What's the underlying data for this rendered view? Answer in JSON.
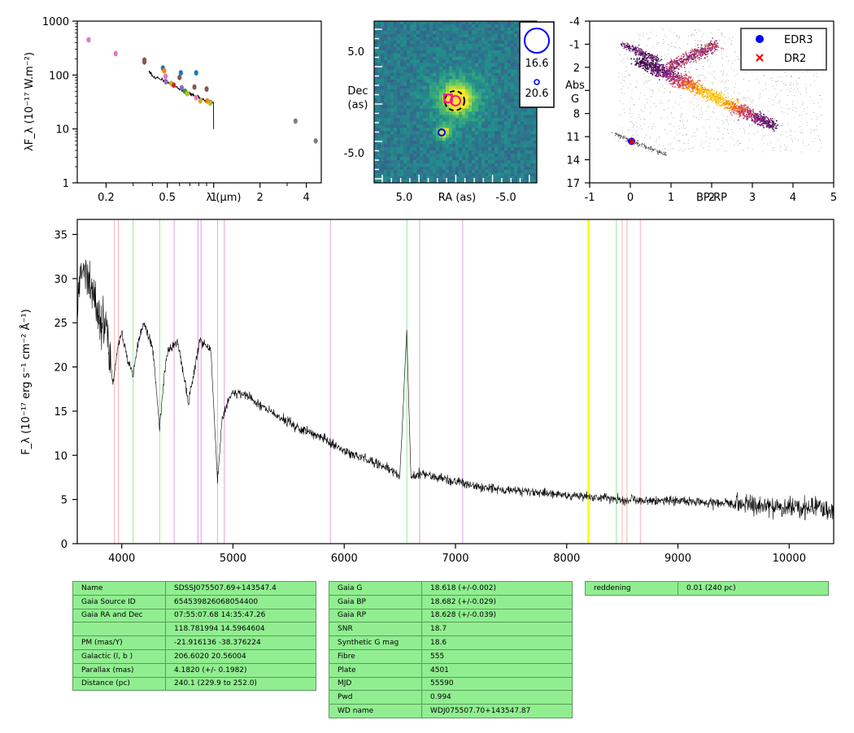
{
  "sed": {
    "ylabel": "λF_λ (10⁻¹⁷ W.m⁻²)",
    "xlabel": "λ (µm)",
    "xticks": [
      "0.2",
      "0.5",
      "1",
      "2",
      "4"
    ],
    "yticks": [
      "1",
      "10",
      "100",
      "1000"
    ]
  },
  "image": {
    "xlabel": "RA (as)",
    "ylabel_line1": "Dec",
    "ylabel_line2": "(as)",
    "xticks": [
      "5.0",
      "-5.0"
    ],
    "yticks": [
      "5.0",
      "-5.0"
    ],
    "legend": [
      "16.6",
      "20.6"
    ]
  },
  "hrd": {
    "xlabel": "BP-RP",
    "ylabel_line1": "Abs",
    "ylabel_line2": "G",
    "xticks": [
      "-1",
      "0",
      "1",
      "2",
      "3",
      "4",
      "5"
    ],
    "yticks": [
      "-4",
      "-1",
      "2",
      "5",
      "8",
      "11",
      "14",
      "17"
    ],
    "legend": [
      "EDR3",
      "DR2"
    ]
  },
  "spectrum": {
    "ylabel": "F_λ (10⁻¹⁷ erg s⁻¹ cm⁻² Å⁻¹)",
    "xticks": [
      "4000",
      "5000",
      "6000",
      "7000",
      "8000",
      "9000",
      "10000"
    ],
    "yticks": [
      "0",
      "5",
      "10",
      "15",
      "20",
      "25",
      "30",
      "35"
    ]
  },
  "chart_data": [
    {
      "type": "scatter",
      "panel": "sed",
      "x_scale": "log",
      "y_scale": "log",
      "xlim": [
        0.13,
        5.0
      ],
      "ylim": [
        1,
        1000
      ],
      "points": [
        {
          "x": 0.154,
          "y": 450,
          "color": "#e377c2"
        },
        {
          "x": 0.231,
          "y": 250,
          "color": "#e377c2"
        },
        {
          "x": 0.355,
          "y": 190,
          "color": "#8c564b"
        },
        {
          "x": 0.355,
          "y": 175,
          "color": "#8c564b"
        },
        {
          "x": 0.468,
          "y": 135,
          "color": "#1f77b4"
        },
        {
          "x": 0.477,
          "y": 120,
          "color": "#ff7f0e"
        },
        {
          "x": 0.487,
          "y": 95,
          "color": "#e377c2"
        },
        {
          "x": 0.49,
          "y": 75,
          "color": "#9467bd"
        },
        {
          "x": 0.53,
          "y": 70,
          "color": "#bcbd22"
        },
        {
          "x": 0.55,
          "y": 65,
          "color": "#d62728"
        },
        {
          "x": 0.6,
          "y": 90,
          "color": "#8c564b"
        },
        {
          "x": 0.612,
          "y": 110,
          "color": "#1f77b4"
        },
        {
          "x": 0.62,
          "y": 58,
          "color": "#9467bd"
        },
        {
          "x": 0.65,
          "y": 50,
          "color": "#2ca02c"
        },
        {
          "x": 0.673,
          "y": 45,
          "color": "#bcbd22"
        },
        {
          "x": 0.75,
          "y": 60,
          "color": "#8c564b"
        },
        {
          "x": 0.77,
          "y": 110,
          "color": "#1f77b4"
        },
        {
          "x": 0.77,
          "y": 38,
          "color": "#e377c2"
        },
        {
          "x": 0.82,
          "y": 33,
          "color": "#bcbd22"
        },
        {
          "x": 0.9,
          "y": 55,
          "color": "#8c564b"
        },
        {
          "x": 0.91,
          "y": 33,
          "color": "#ff7f0e"
        },
        {
          "x": 0.95,
          "y": 30,
          "color": "#bcbd22"
        },
        {
          "x": 3.4,
          "y": 14,
          "color": "#7f7f7f"
        },
        {
          "x": 4.6,
          "y": 6,
          "color": "#7f7f7f"
        }
      ],
      "model_line": {
        "x": [
          0.38,
          0.4,
          0.45,
          0.5,
          0.55,
          0.6,
          0.65,
          0.7,
          0.75,
          0.8,
          0.85,
          0.9,
          0.95,
          1.0
        ],
        "y": [
          120,
          95,
          85,
          75,
          65,
          55,
          50,
          45,
          42,
          38,
          35,
          33,
          32,
          30
        ]
      }
    },
    {
      "type": "scatter",
      "panel": "hrd",
      "xlim": [
        -1,
        5
      ],
      "ylim": [
        17,
        -4
      ],
      "series": [
        {
          "name": "EDR3",
          "x": [
            0.03
          ],
          "y": [
            11.6
          ],
          "color": "#0000ff"
        },
        {
          "name": "DR2",
          "x": [
            0.04
          ],
          "y": [
            11.6
          ],
          "color": "#ff0000"
        }
      ]
    },
    {
      "type": "line",
      "panel": "spectrum",
      "xlim": [
        3600,
        10400
      ],
      "ylim": [
        0,
        36.7
      ],
      "x": [
        3600,
        3650,
        3700,
        3800,
        3880,
        3920,
        3960,
        4000,
        4050,
        4100,
        4150,
        4200,
        4280,
        4340,
        4380,
        4420,
        4500,
        4600,
        4700,
        4800,
        4861,
        4900,
        4950,
        5000,
        5100,
        5200,
        5400,
        5600,
        5800,
        6000,
        6200,
        6400,
        6500,
        6562,
        6600,
        6700,
        6800,
        7000,
        7200,
        7500,
        8000,
        8500,
        9000,
        9500,
        10000,
        10300,
        10400
      ],
      "y": [
        28,
        32,
        30,
        26,
        23,
        18,
        22,
        24,
        21,
        19,
        23,
        25,
        22,
        13,
        19,
        22,
        23,
        16,
        23,
        22,
        7,
        14,
        16,
        17,
        17,
        16,
        14.5,
        13,
        12,
        10.5,
        9.5,
        8.5,
        7.6,
        24,
        7.5,
        8,
        7.6,
        7,
        6.5,
        6,
        5.5,
        5,
        4.8,
        4.5,
        4.2,
        4,
        3.5
      ],
      "lines": [
        {
          "x": 3934,
          "color": "#ffb0b0"
        },
        {
          "x": 3969,
          "color": "#ffb0b0"
        },
        {
          "x": 4102,
          "color": "#90ee90"
        },
        {
          "x": 4341,
          "color": "#90ee90"
        },
        {
          "x": 4471,
          "color": "#dda0dd"
        },
        {
          "x": 4686,
          "color": "#dda0dd"
        },
        {
          "x": 4713,
          "color": "#dda0dd"
        },
        {
          "x": 4861,
          "color": "#90ee90"
        },
        {
          "x": 4922,
          "color": "#dda0dd"
        },
        {
          "x": 5876,
          "color": "#dda0dd"
        },
        {
          "x": 6563,
          "color": "#90ee90"
        },
        {
          "x": 6678,
          "color": "#dda0dd"
        },
        {
          "x": 7065,
          "color": "#dda0dd"
        },
        {
          "x": 8195,
          "color": "#ffff00"
        },
        {
          "x": 8446,
          "color": "#90ee90"
        },
        {
          "x": 8498,
          "color": "#ffb0b0"
        },
        {
          "x": 8542,
          "color": "#ffb0b0"
        },
        {
          "x": 8662,
          "color": "#ffb0b0"
        }
      ]
    }
  ],
  "tables": {
    "left": [
      [
        "Name",
        "SDSSJ075507.69+143547.4"
      ],
      [
        "Gaia Source ID",
        "654539826068054400"
      ],
      [
        "Gaia RA and Dec",
        "07:55:07.68    14:35:47.26"
      ],
      [
        "",
        "118.781994    14.5964604"
      ],
      [
        "PM (mas/Y)",
        "-21.916136    -38.376224"
      ],
      [
        "Galactic (l, b )",
        "206.6020    20.56004"
      ],
      [
        "Parallax (mas)",
        "4.1820 (+/- 0.1982)"
      ],
      [
        "Distance (pc)",
        "240.1 (229.9 to 252.0)"
      ]
    ],
    "middle": [
      [
        "Gaia G",
        "18.618 (+/-0.002)"
      ],
      [
        "Gaia BP",
        "18.682 (+/-0.029)"
      ],
      [
        "Gaia RP",
        "18.628 (+/-0.039)"
      ],
      [
        "SNR",
        "18.7"
      ],
      [
        "Synthetic G mag",
        "18.6"
      ],
      [
        "Fibre",
        "555"
      ],
      [
        "Plate",
        "4501"
      ],
      [
        "MJD",
        "55590"
      ],
      [
        "Pwd",
        "0.994"
      ],
      [
        "WD name",
        "WDJ075507.70+143547.87"
      ]
    ],
    "right": [
      [
        "reddening",
        "0.01 (240 pc)"
      ]
    ]
  }
}
